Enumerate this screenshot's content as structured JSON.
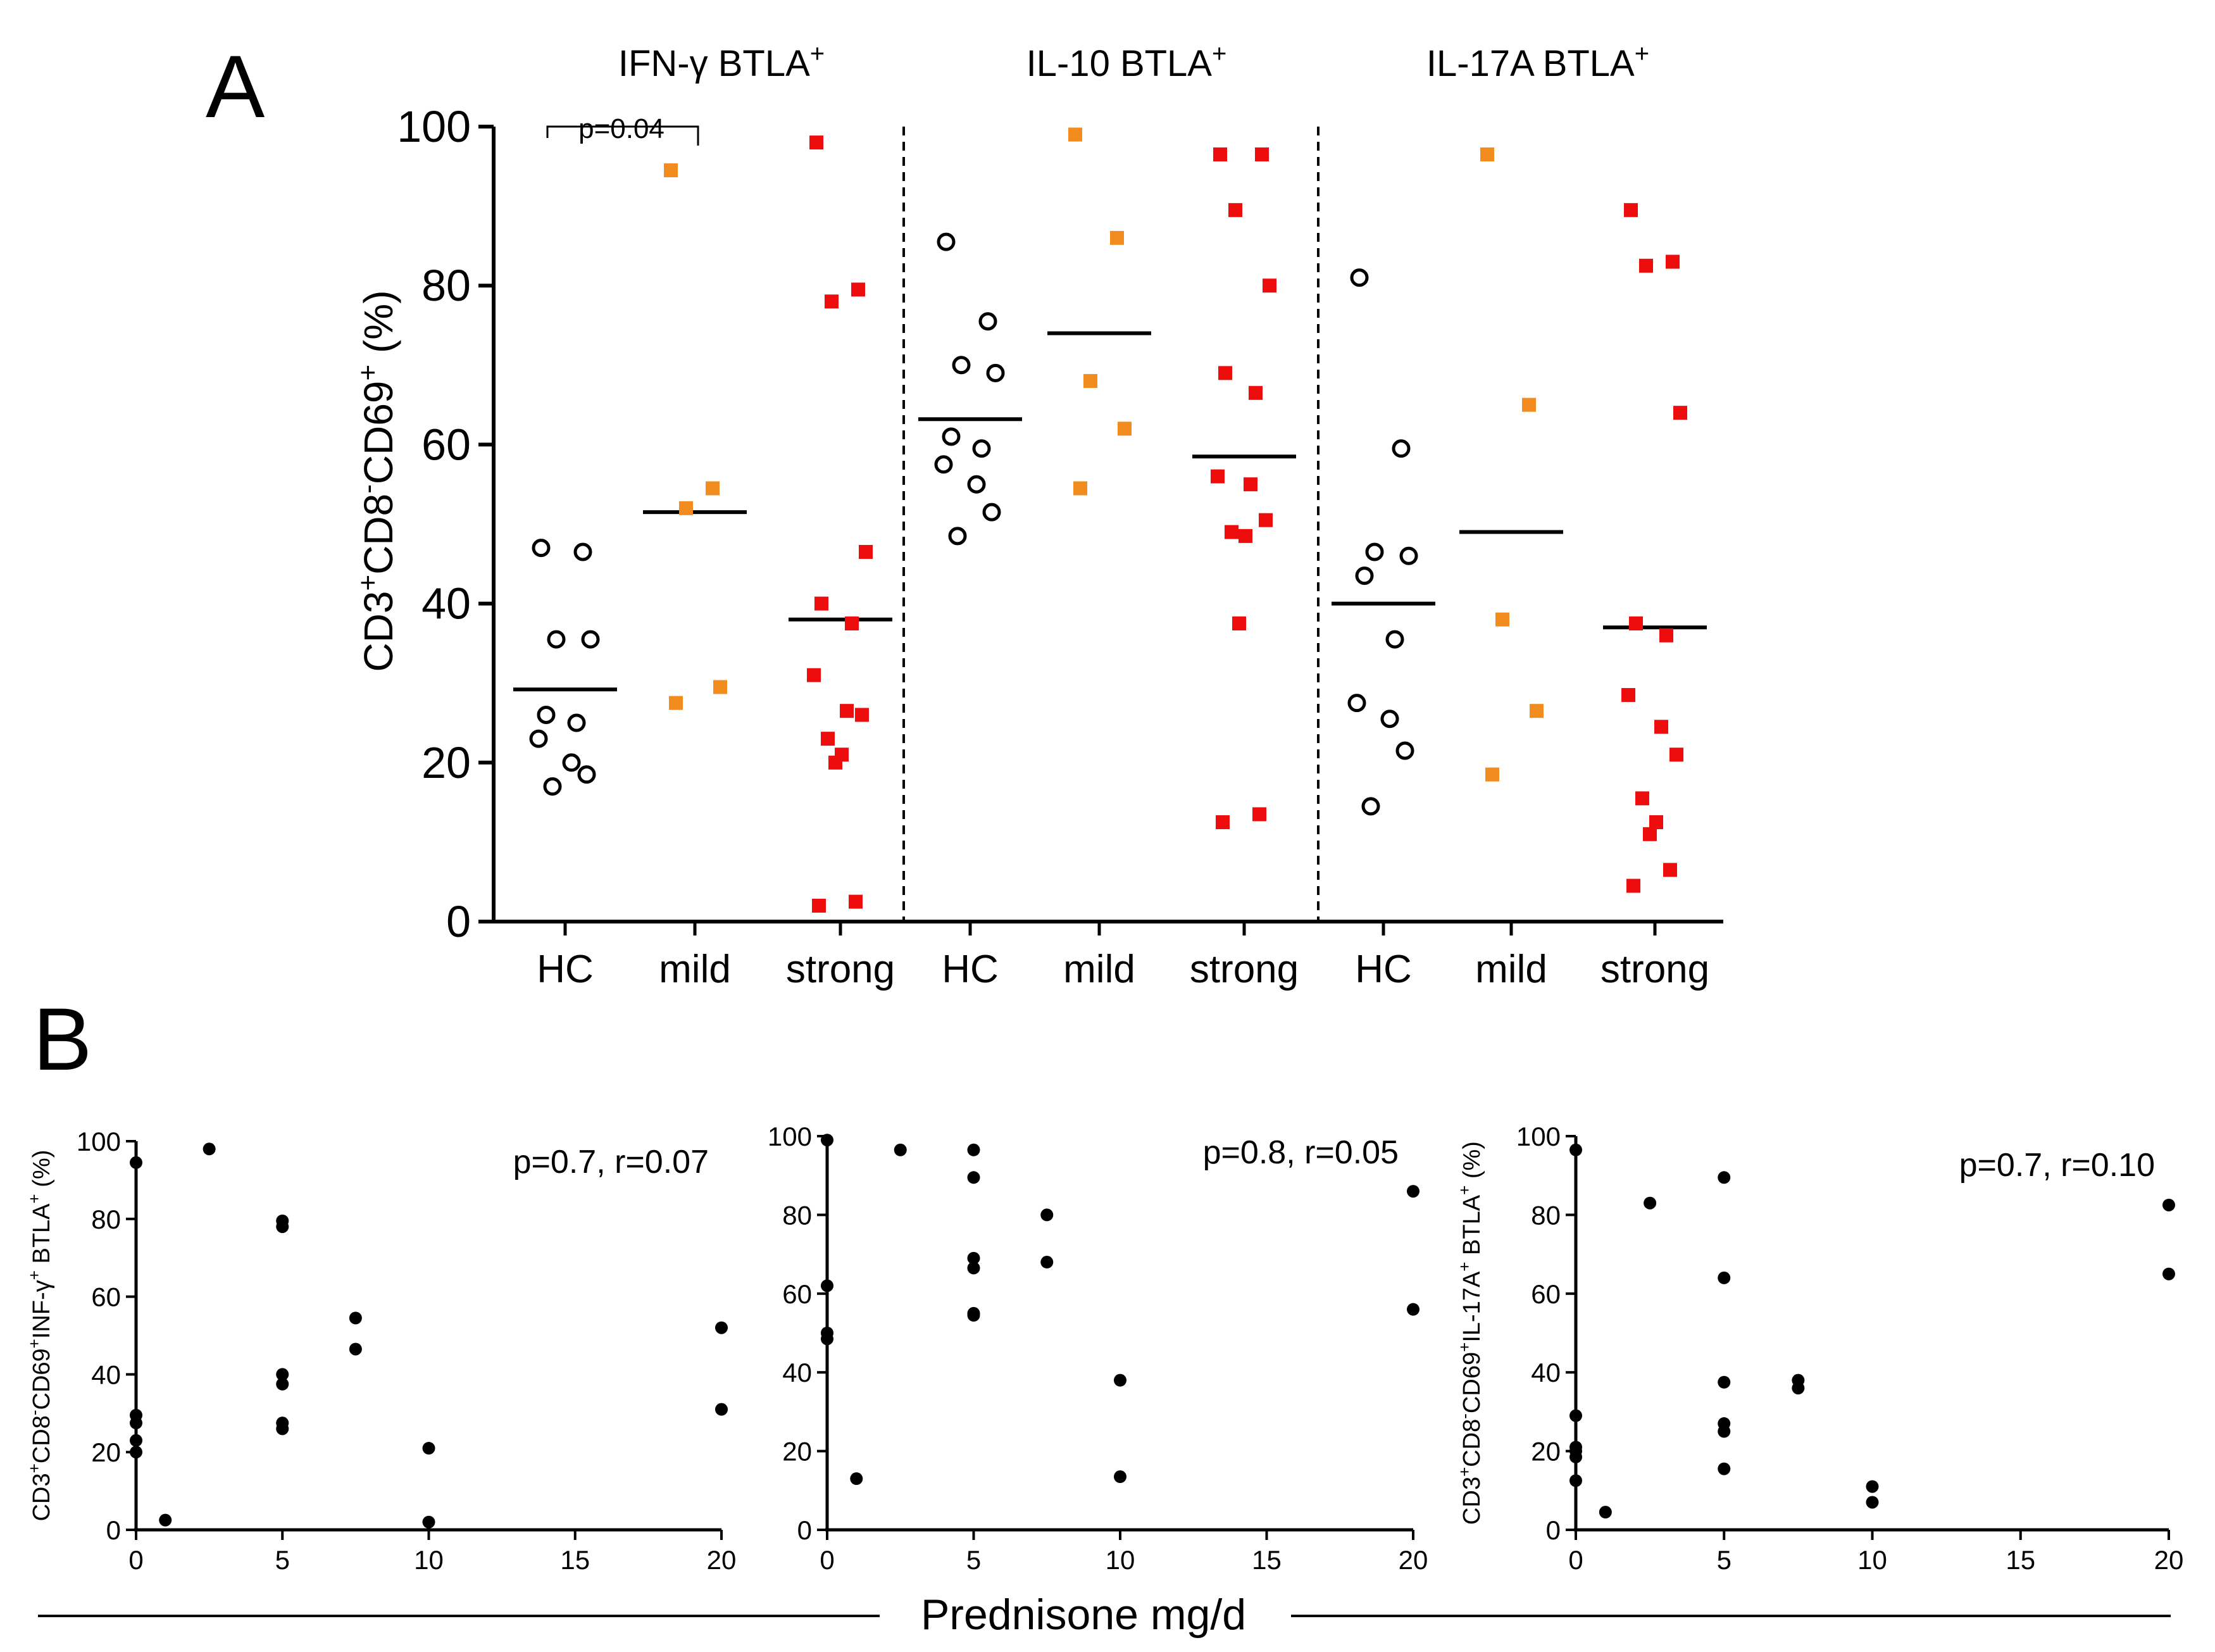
{
  "panel_labels": {
    "a": "A",
    "b": "B"
  },
  "colors": {
    "hc": "#000000",
    "mild": "#f28c1e",
    "strong": "#ee0d0d",
    "dot": "#000000"
  },
  "panelA": {
    "ylabel_parts": [
      "CD3",
      "+",
      "CD8",
      "-",
      "CD69",
      "+",
      " (%)"
    ],
    "yticks": [
      "0",
      "20",
      "40",
      "60",
      "80",
      "100"
    ],
    "significance": "p=0.04"
  },
  "panelB": {
    "xlabel": "Prednisone mg/d",
    "xticks": [
      "0",
      "5",
      "10",
      "15",
      "20"
    ],
    "yticks": [
      "0",
      "20",
      "40",
      "60",
      "80",
      "100"
    ]
  },
  "chart_data": [
    {
      "type": "scatter",
      "title": "IFN-γ BTLA⁺ / IL-10 BTLA⁺ / IL-17A BTLA⁺",
      "ylabel": "CD3⁺CD8⁻CD69⁺ (%)",
      "ylim": [
        0,
        100
      ],
      "groups": [
        {
          "title_main": "IFN-γ BTLA",
          "title_sup": "+",
          "categories": [
            {
              "label": "HC",
              "marker": "open-circle",
              "color": "#000000",
              "mean": 29.2,
              "values": [
                47,
                46.5,
                35.5,
                35.5,
                26,
                25,
                23,
                20,
                18.5,
                17
              ]
            },
            {
              "label": "mild",
              "marker": "square",
              "color": "#f28c1e",
              "mean": 51.5,
              "values": [
                94.5,
                54.5,
                52,
                29.5,
                27.5
              ]
            },
            {
              "label": "strong",
              "marker": "square",
              "color": "#ee0d0d",
              "mean": 38,
              "values": [
                98,
                79.5,
                78,
                46.5,
                40,
                37.5,
                31,
                26.5,
                26,
                23,
                21,
                20,
                2.5,
                2
              ]
            }
          ]
        },
        {
          "title_main": "IL-10 BTLA",
          "title_sup": "+",
          "categories": [
            {
              "label": "HC",
              "marker": "open-circle",
              "color": "#000000",
              "mean": 63.2,
              "values": [
                85.5,
                75.5,
                70,
                69,
                61,
                59.5,
                57.5,
                55,
                51.5,
                48.5
              ]
            },
            {
              "label": "mild",
              "marker": "square",
              "color": "#f28c1e",
              "mean": 74,
              "values": [
                99,
                86,
                68,
                62,
                54.5
              ]
            },
            {
              "label": "strong",
              "marker": "square",
              "color": "#ee0d0d",
              "mean": 58.5,
              "values": [
                96.5,
                96.5,
                89.5,
                80,
                69,
                66.5,
                56,
                55,
                50.5,
                49,
                48.5,
                37.5,
                13.5,
                12.5
              ]
            }
          ]
        },
        {
          "title_main": "IL-17A BTLA",
          "title_sup": "+",
          "categories": [
            {
              "label": "HC",
              "marker": "open-circle",
              "color": "#000000",
              "mean": 40,
              "values": [
                81,
                59.5,
                46.5,
                46,
                43.5,
                35.5,
                27.5,
                25.5,
                21.5,
                14.5
              ]
            },
            {
              "label": "mild",
              "marker": "square",
              "color": "#f28c1e",
              "mean": 49,
              "values": [
                96.5,
                65,
                38,
                26.5,
                18.5
              ]
            },
            {
              "label": "strong",
              "marker": "square",
              "color": "#ee0d0d",
              "mean": 37,
              "values": [
                89.5,
                83,
                82.5,
                64,
                37.5,
                36,
                28.5,
                24.5,
                21,
                15.5,
                12.5,
                11,
                6.5,
                4.5
              ]
            }
          ]
        }
      ]
    },
    {
      "type": "scatter",
      "annotation": "p=0.7, r=0.07",
      "ylabel_parts": [
        "CD3",
        "+",
        "CD8",
        "-",
        "CD69",
        "+",
        "INF-γ",
        "+",
        " BTLA",
        "+",
        " (%)"
      ],
      "xlabel": "Prednisone mg/d",
      "xlim": [
        0,
        20
      ],
      "ylim": [
        0,
        100
      ],
      "points": [
        [
          0,
          94.5
        ],
        [
          0,
          29.5
        ],
        [
          0,
          27.5
        ],
        [
          0,
          23
        ],
        [
          0,
          20
        ],
        [
          1,
          2.5
        ],
        [
          2.5,
          98
        ],
        [
          5,
          79.5
        ],
        [
          5,
          78
        ],
        [
          5,
          40
        ],
        [
          5,
          37.5
        ],
        [
          5,
          27.5
        ],
        [
          5,
          26
        ],
        [
          7.5,
          54.5
        ],
        [
          7.5,
          46.5
        ],
        [
          10,
          21
        ],
        [
          10,
          2
        ],
        [
          20,
          52
        ],
        [
          20,
          31
        ]
      ]
    },
    {
      "type": "scatter",
      "annotation": "p=0.8, r=0.05",
      "xlabel": "Prednisone mg/d",
      "xlim": [
        0,
        20
      ],
      "ylim": [
        0,
        100
      ],
      "points": [
        [
          0,
          99
        ],
        [
          0,
          62
        ],
        [
          0,
          50
        ],
        [
          0,
          48.5
        ],
        [
          1,
          13
        ],
        [
          2.5,
          96.5
        ],
        [
          5,
          96.5
        ],
        [
          5,
          89.5
        ],
        [
          5,
          69
        ],
        [
          5,
          66.5
        ],
        [
          5,
          55
        ],
        [
          5,
          54.5
        ],
        [
          7.5,
          80
        ],
        [
          7.5,
          68
        ],
        [
          10,
          38
        ],
        [
          10,
          13.5
        ],
        [
          20,
          86
        ],
        [
          20,
          56
        ]
      ]
    },
    {
      "type": "scatter",
      "annotation": "p=0.7, r=0.10",
      "ylabel_parts": [
        "CD3",
        "+",
        "CD8",
        "-",
        "CD69",
        "+",
        "IL-17A",
        "+",
        " BTLA",
        "+",
        " (%)"
      ],
      "xlabel": "Prednisone mg/d",
      "xlim": [
        0,
        20
      ],
      "ylim": [
        0,
        100
      ],
      "points": [
        [
          0,
          96.5
        ],
        [
          0,
          29
        ],
        [
          0,
          21
        ],
        [
          0,
          20
        ],
        [
          0,
          18.5
        ],
        [
          0,
          12.5
        ],
        [
          1,
          4.5
        ],
        [
          2.5,
          83
        ],
        [
          5,
          89.5
        ],
        [
          5,
          64
        ],
        [
          5,
          37.5
        ],
        [
          5,
          27
        ],
        [
          5,
          25
        ],
        [
          5,
          15.5
        ],
        [
          7.5,
          38
        ],
        [
          7.5,
          36
        ],
        [
          10,
          11
        ],
        [
          10,
          7
        ],
        [
          20,
          82.5
        ],
        [
          20,
          65
        ]
      ]
    }
  ]
}
